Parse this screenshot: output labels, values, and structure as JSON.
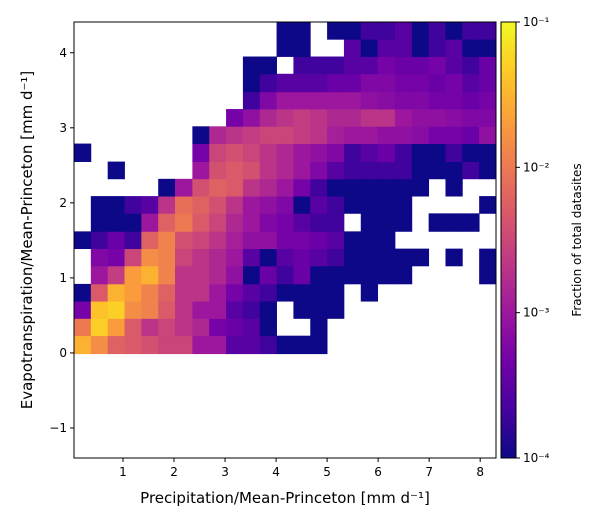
{
  "chart_data": {
    "type": "heatmap2d",
    "xlabel": "Precipitation/Mean-Princeton [mm d⁻¹]",
    "ylabel": "Evapotranspiration/Mean-Princeton [mm d⁻¹]",
    "colorbar_label": "Fraction of total datasites",
    "colormap": "plasma",
    "color_log": true,
    "xlim": [
      0.04,
      8.31
    ],
    "ylim": [
      -1.4,
      4.41
    ],
    "xticks": [
      1,
      2,
      3,
      4,
      5,
      6,
      7,
      8
    ],
    "yticks": [
      {
        "value": -1,
        "label": "−1"
      },
      0,
      1,
      2,
      3,
      4
    ],
    "clim": [
      0.0001,
      0.1
    ],
    "cticks": [
      {
        "value": 0.0001,
        "label": "10⁻⁴"
      },
      {
        "value": 0.001,
        "label": "10⁻³"
      },
      {
        "value": 0.01,
        "label": "10⁻²"
      },
      {
        "value": 0.1,
        "label": "10⁻¹"
      }
    ],
    "xbins": [
      0.04,
      0.37,
      0.7,
      1.03,
      1.36,
      1.69,
      2.02,
      2.36,
      2.69,
      3.02,
      3.35,
      3.68,
      4.01,
      4.34,
      4.67,
      5.0,
      5.33,
      5.66,
      5.99,
      6.33,
      6.66,
      6.99,
      7.32,
      7.65,
      7.98,
      8.31
    ],
    "ybins": [
      -1.4,
      -1.17,
      -0.94,
      -0.7,
      -0.47,
      -0.24,
      -0.01,
      0.23,
      0.46,
      0.69,
      0.92,
      1.16,
      1.39,
      1.62,
      1.86,
      2.09,
      2.32,
      2.55,
      2.79,
      3.02,
      3.25,
      3.48,
      3.72,
      3.95,
      4.18,
      4.41
    ],
    "z": [
      [
        null,
        null,
        null,
        null,
        null,
        null,
        null,
        null,
        null,
        null,
        null,
        null,
        null,
        null,
        null,
        null,
        null,
        null,
        null,
        null,
        null,
        null,
        null,
        null,
        null
      ],
      [
        null,
        null,
        null,
        null,
        null,
        null,
        null,
        null,
        null,
        null,
        null,
        null,
        null,
        null,
        null,
        null,
        null,
        null,
        null,
        null,
        null,
        null,
        null,
        null,
        null
      ],
      [
        null,
        null,
        null,
        null,
        null,
        null,
        null,
        null,
        null,
        null,
        null,
        null,
        null,
        null,
        null,
        null,
        null,
        null,
        null,
        null,
        null,
        null,
        null,
        null,
        null
      ],
      [
        null,
        null,
        null,
        null,
        null,
        null,
        null,
        null,
        null,
        null,
        null,
        null,
        null,
        null,
        null,
        null,
        null,
        null,
        null,
        null,
        null,
        null,
        null,
        null,
        null
      ],
      [
        null,
        null,
        null,
        null,
        null,
        null,
        null,
        null,
        null,
        null,
        null,
        null,
        null,
        null,
        null,
        null,
        null,
        null,
        null,
        null,
        null,
        null,
        null,
        null,
        null
      ],
      [
        null,
        null,
        null,
        null,
        null,
        null,
        null,
        null,
        null,
        null,
        null,
        null,
        null,
        null,
        null,
        null,
        null,
        null,
        null,
        null,
        null,
        null,
        null,
        null,
        null
      ],
      [
        0.03,
        0.015,
        0.006,
        0.005,
        0.004,
        0.003,
        0.003,
        0.001,
        0.001,
        0.0003,
        0.0003,
        0.0002,
        0.0001,
        0.0001,
        0.0001,
        null,
        null,
        null,
        null,
        null,
        null,
        null,
        null,
        null,
        null
      ],
      [
        0.01,
        0.05,
        0.02,
        0.005,
        0.002,
        0.003,
        0.002,
        0.0015,
        0.0005,
        0.0004,
        0.0003,
        0.0001,
        null,
        null,
        0.0001,
        null,
        null,
        null,
        null,
        null,
        null,
        null,
        null,
        null,
        null
      ],
      [
        0.0005,
        0.04,
        0.05,
        0.015,
        0.012,
        0.005,
        0.002,
        0.001,
        0.001,
        0.0003,
        0.0002,
        0.0001,
        null,
        0.0001,
        0.0001,
        0.0001,
        null,
        null,
        null,
        null,
        null,
        null,
        null,
        null,
        null
      ],
      [
        0.0001,
        0.005,
        0.03,
        0.02,
        0.012,
        0.006,
        0.002,
        0.002,
        0.001,
        0.0005,
        0.0003,
        0.0002,
        0.0001,
        0.0001,
        0.0001,
        0.0001,
        null,
        0.0001,
        null,
        null,
        null,
        null,
        null,
        null,
        null
      ],
      [
        null,
        0.001,
        0.0025,
        0.02,
        0.03,
        0.012,
        0.002,
        0.002,
        0.0015,
        0.0008,
        0.0001,
        0.0004,
        0.0002,
        0.0004,
        0.0001,
        0.0001,
        0.0001,
        0.0001,
        0.0001,
        0.0001,
        null,
        null,
        null,
        null,
        0.0001
      ],
      [
        null,
        0.0006,
        0.0005,
        0.003,
        0.015,
        0.012,
        0.003,
        0.002,
        0.0015,
        0.001,
        0.0003,
        0.0001,
        0.0003,
        0.0004,
        0.0003,
        0.0002,
        0.0001,
        0.0001,
        0.0001,
        0.0001,
        0.0001,
        null,
        0.0001,
        null,
        0.0001
      ],
      [
        0.0001,
        0.0002,
        0.0004,
        0.0002,
        0.006,
        0.012,
        0.004,
        0.003,
        0.002,
        0.0012,
        0.0008,
        0.0008,
        0.0005,
        0.0005,
        0.0004,
        0.0003,
        0.0001,
        0.0001,
        0.0001,
        null,
        null,
        null,
        null,
        null,
        null
      ],
      [
        null,
        0.0001,
        0.0001,
        0.0001,
        0.001,
        0.006,
        0.01,
        0.005,
        0.003,
        0.0015,
        0.001,
        0.0006,
        0.0005,
        0.0003,
        0.0002,
        0.0002,
        null,
        0.0001,
        0.0001,
        0.0001,
        null,
        0.0001,
        0.0001,
        0.0001,
        null
      ],
      [
        null,
        0.0001,
        0.0001,
        0.0002,
        0.0003,
        0.002,
        0.008,
        0.006,
        0.004,
        0.002,
        0.001,
        0.0008,
        0.0006,
        0.0001,
        0.0003,
        0.0002,
        0.0001,
        0.0001,
        0.0001,
        0.0001,
        null,
        null,
        null,
        null,
        0.0001
      ],
      [
        null,
        null,
        null,
        null,
        null,
        0.0001,
        0.001,
        0.004,
        0.006,
        0.005,
        0.002,
        0.0015,
        0.001,
        0.0005,
        0.0002,
        0.0001,
        0.0001,
        0.0001,
        0.0001,
        0.0001,
        0.0001,
        null,
        0.0001,
        null,
        null
      ],
      [
        null,
        null,
        0.0001,
        null,
        null,
        null,
        null,
        0.001,
        0.004,
        0.005,
        0.004,
        0.002,
        0.0015,
        0.001,
        0.0006,
        0.0003,
        0.0002,
        0.0002,
        0.0002,
        0.0002,
        0.0001,
        0.0001,
        0.0001,
        0.0002,
        0.0001
      ],
      [
        0.0001,
        null,
        null,
        null,
        null,
        null,
        null,
        0.0005,
        0.003,
        0.004,
        0.003,
        0.002,
        0.0015,
        0.001,
        0.0008,
        0.0006,
        0.0002,
        0.0003,
        0.0004,
        0.0002,
        0.0001,
        0.0001,
        0.0002,
        0.0001,
        0.0001
      ],
      [
        null,
        null,
        null,
        null,
        null,
        null,
        null,
        0.0001,
        0.0015,
        0.002,
        0.0025,
        0.003,
        0.003,
        0.0025,
        0.002,
        0.0012,
        0.001,
        0.001,
        0.0008,
        0.0008,
        0.0007,
        0.0005,
        0.0005,
        0.0004,
        0.0008
      ],
      [
        null,
        null,
        null,
        null,
        null,
        null,
        null,
        null,
        null,
        0.0005,
        0.0008,
        0.0015,
        0.002,
        0.0025,
        0.002,
        0.0015,
        0.0015,
        0.002,
        0.002,
        0.001,
        0.0008,
        0.0008,
        0.0007,
        0.0006,
        0.0006
      ],
      [
        null,
        null,
        null,
        null,
        null,
        null,
        null,
        null,
        null,
        null,
        0.0002,
        0.0006,
        0.001,
        0.001,
        0.001,
        0.001,
        0.001,
        0.0008,
        0.0007,
        0.0006,
        0.0006,
        0.0005,
        0.0005,
        0.0004,
        0.0005
      ],
      [
        null,
        null,
        null,
        null,
        null,
        null,
        null,
        null,
        null,
        null,
        0.0001,
        0.0002,
        0.0003,
        0.0003,
        0.0003,
        0.0004,
        0.0004,
        0.0006,
        0.0006,
        0.0005,
        0.0005,
        0.0004,
        0.0005,
        0.0003,
        0.0004
      ],
      [
        null,
        null,
        null,
        null,
        null,
        null,
        null,
        null,
        null,
        null,
        0.0001,
        0.0001,
        null,
        0.0002,
        0.0002,
        0.0002,
        0.0003,
        0.0003,
        0.0005,
        0.0004,
        0.0004,
        0.0005,
        0.0003,
        0.0002,
        0.0004
      ],
      [
        null,
        null,
        null,
        null,
        null,
        null,
        null,
        null,
        null,
        null,
        null,
        null,
        0.0001,
        0.0001,
        null,
        null,
        0.0003,
        0.0001,
        0.0003,
        0.0003,
        0.0001,
        0.0002,
        0.0003,
        0.0001,
        0.0001
      ],
      [
        null,
        null,
        null,
        null,
        null,
        null,
        null,
        null,
        null,
        null,
        null,
        null,
        0.0001,
        0.0001,
        null,
        0.0001,
        0.0001,
        0.0002,
        0.0002,
        0.0003,
        0.0001,
        0.0002,
        0.0001,
        0.0002,
        0.0002
      ]
    ]
  }
}
